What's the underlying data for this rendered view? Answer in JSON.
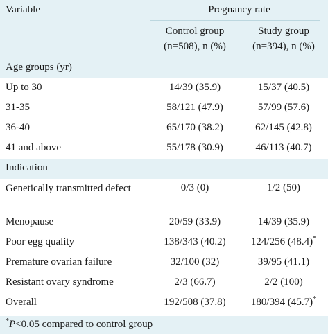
{
  "header": {
    "variable": "Variable",
    "pregnancy_rate": "Pregnancy rate",
    "control_l1": "Control group",
    "control_l2": "(n=508), n (%)",
    "study_l1": "Study group",
    "study_l2": "(n=394), n (%)"
  },
  "rows": [
    {
      "label": "Age groups (yr)",
      "control": "",
      "study": ""
    },
    {
      "label": "Up to 30",
      "control": "14/39 (35.9)",
      "study": "15/37 (40.5)"
    },
    {
      "label": "31-35",
      "control": "58/121 (47.9)",
      "study": "57/99 (57.6)"
    },
    {
      "label": "36-40",
      "control": "65/170 (38.2)",
      "study": "62/145 (42.8)"
    },
    {
      "label": "41 and above",
      "control": "55/178 (30.9)",
      "study": "46/113 (40.7)"
    },
    {
      "label": "Indication",
      "control": "",
      "study": ""
    },
    {
      "label": "Genetically transmitted defect",
      "control": "0/3 (0)",
      "study": "1/2 (50)"
    },
    {
      "label": "Menopause",
      "control": "20/59 (33.9)",
      "study": "14/39 (35.9)"
    },
    {
      "label": "Poor egg quality",
      "control": "138/343 (40.2)",
      "study": "124/256 (48.4)",
      "study_mark": "*"
    },
    {
      "label": "Premature ovarian failure",
      "control": "32/100 (32)",
      "study": "39/95 (41.1)"
    },
    {
      "label": "Resistant ovary syndrome",
      "control": "2/3 (66.7)",
      "study": "2/2 (100)"
    },
    {
      "label": "Overall",
      "control": "192/508 (37.8)",
      "study": "180/394 (45.7)",
      "study_mark": "*"
    }
  ],
  "footnote": {
    "mark": "*",
    "p": "P",
    "text": "<0.05 compared to control group"
  },
  "colors": {
    "band": "#e4f1f5",
    "rule": "#bcd7df"
  }
}
